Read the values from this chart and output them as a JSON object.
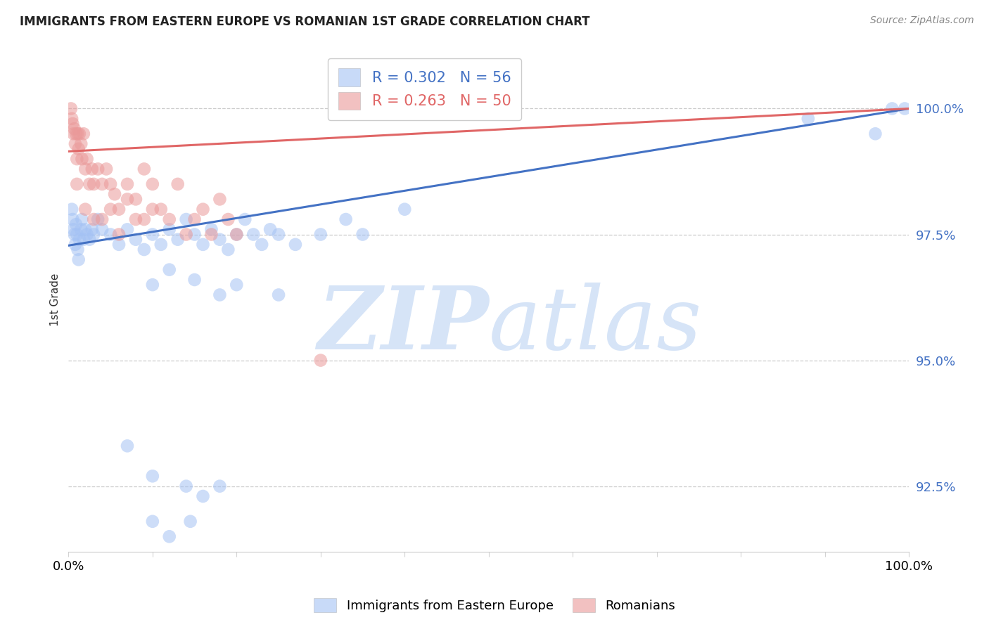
{
  "title": "IMMIGRANTS FROM EASTERN EUROPE VS ROMANIAN 1ST GRADE CORRELATION CHART",
  "source": "Source: ZipAtlas.com",
  "ylabel_left": "1st Grade",
  "yticks": [
    92.5,
    95.0,
    97.5,
    100.0
  ],
  "ytick_labels": [
    "92.5%",
    "95.0%",
    "97.5%",
    "100.0%"
  ],
  "xlim": [
    0,
    100
  ],
  "ylim": [
    91.2,
    101.2
  ],
  "legend_blue_r": "R = 0.302",
  "legend_blue_n": "N = 56",
  "legend_pink_r": "R = 0.263",
  "legend_pink_n": "N = 50",
  "blue_color": "#a4c2f4",
  "pink_color": "#ea9999",
  "blue_line_color": "#4472c4",
  "pink_line_color": "#e06666",
  "watermark_zip": "ZIP",
  "watermark_atlas": "atlas",
  "watermark_color": "#d6e4f7",
  "blue_line_x": [
    0,
    100
  ],
  "blue_line_y": [
    97.28,
    100.0
  ],
  "pink_line_x": [
    0,
    100
  ],
  "pink_line_y": [
    99.15,
    100.0
  ],
  "blue_scatter_x": [
    0.4,
    0.5,
    0.6,
    0.7,
    0.8,
    0.9,
    1.0,
    1.1,
    1.2,
    1.3,
    1.5,
    1.6,
    1.8,
    2.0,
    2.2,
    2.5,
    2.8,
    3.0,
    3.5,
    4.0,
    5.0,
    6.0,
    7.0,
    8.0,
    9.0,
    10.0,
    11.0,
    12.0,
    13.0,
    14.0,
    15.0,
    16.0,
    17.0,
    18.0,
    19.0,
    20.0,
    21.0,
    22.0,
    23.0,
    24.0,
    25.0,
    27.0,
    30.0,
    33.0,
    35.0,
    40.0,
    10.0,
    12.0,
    15.0,
    18.0,
    20.0,
    25.0,
    88.0,
    96.0,
    98.0,
    99.5
  ],
  "blue_scatter_y": [
    98.0,
    97.8,
    97.6,
    97.5,
    97.3,
    97.7,
    97.5,
    97.2,
    97.0,
    97.4,
    97.6,
    97.8,
    97.4,
    97.6,
    97.5,
    97.4,
    97.6,
    97.5,
    97.8,
    97.6,
    97.5,
    97.3,
    97.6,
    97.4,
    97.2,
    97.5,
    97.3,
    97.6,
    97.4,
    97.8,
    97.5,
    97.3,
    97.6,
    97.4,
    97.2,
    97.5,
    97.8,
    97.5,
    97.3,
    97.6,
    97.5,
    97.3,
    97.5,
    97.8,
    97.5,
    98.0,
    96.5,
    96.8,
    96.6,
    96.3,
    96.5,
    96.3,
    99.8,
    99.5,
    100.0,
    100.0
  ],
  "blue_scatter_y_low": [
    93.3,
    92.7,
    92.5,
    91.8,
    92.3,
    92.5,
    91.5,
    91.8
  ],
  "blue_scatter_x_low": [
    7.0,
    10.0,
    14.0,
    10.0,
    16.0,
    18.0,
    12.0,
    14.5
  ],
  "pink_scatter_x": [
    0.3,
    0.4,
    0.5,
    0.6,
    0.7,
    0.8,
    0.9,
    1.0,
    1.1,
    1.2,
    1.3,
    1.5,
    1.6,
    1.8,
    2.0,
    2.2,
    2.5,
    2.8,
    3.0,
    3.5,
    4.0,
    4.5,
    5.0,
    5.5,
    6.0,
    7.0,
    8.0,
    9.0,
    10.0,
    11.0,
    12.0,
    13.0,
    14.0,
    15.0,
    16.0,
    17.0,
    18.0,
    19.0,
    20.0,
    1.0,
    2.0,
    3.0,
    4.0,
    5.0,
    6.0,
    7.0,
    8.0,
    9.0,
    10.0,
    30.0
  ],
  "pink_scatter_y": [
    100.0,
    99.8,
    99.7,
    99.5,
    99.6,
    99.3,
    99.5,
    99.0,
    99.5,
    99.2,
    99.5,
    99.3,
    99.0,
    99.5,
    98.8,
    99.0,
    98.5,
    98.8,
    98.5,
    98.8,
    98.5,
    98.8,
    98.5,
    98.3,
    98.0,
    98.5,
    98.2,
    98.8,
    98.5,
    98.0,
    97.8,
    98.5,
    97.5,
    97.8,
    98.0,
    97.5,
    98.2,
    97.8,
    97.5,
    98.5,
    98.0,
    97.8,
    97.8,
    98.0,
    97.5,
    98.2,
    97.8,
    97.8,
    98.0,
    95.0
  ]
}
